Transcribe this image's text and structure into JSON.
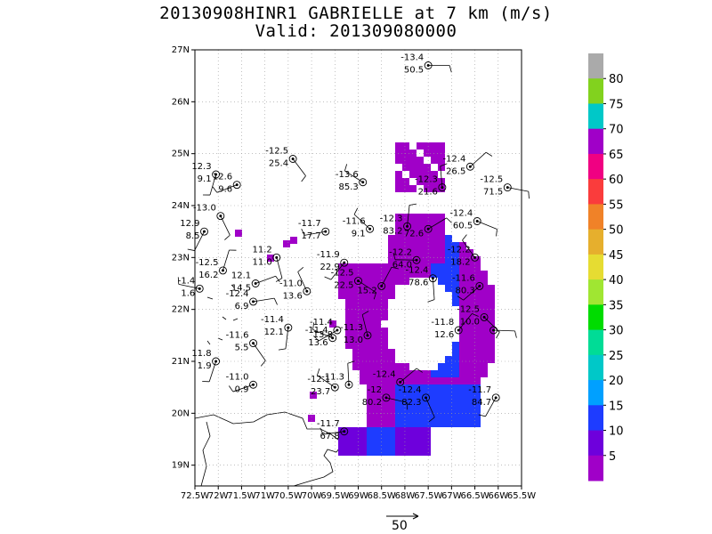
{
  "title": "20130908HINR1 GABRIELLE at 7 km (m/s)",
  "subtitle": "Valid: 201309080000",
  "map": {
    "lat_labels": [
      "27N",
      "26N",
      "25N",
      "24N",
      "23N",
      "22N",
      "21N",
      "20N",
      "19N"
    ],
    "lon_labels": [
      "72.5W",
      "72W",
      "71.5W",
      "71W",
      "70.5W",
      "70W",
      "69.5W",
      "69W",
      "68.5W",
      "68W",
      "67.5W",
      "67W",
      "66.5W",
      "66W",
      "65.5W"
    ],
    "lat_range": [
      18.6,
      27.0
    ],
    "lon_range": [
      -72.5,
      -65.5
    ],
    "grid": true
  },
  "colorbar": {
    "labels": [
      "5",
      "10",
      "15",
      "20",
      "25",
      "30",
      "35",
      "40",
      "45",
      "50",
      "55",
      "60",
      "65",
      "70",
      "75",
      "80"
    ],
    "colors": [
      "#a000c8",
      "#6e00dc",
      "#1e3cff",
      "#00a0ff",
      "#00c8c8",
      "#00dc96",
      "#00dc00",
      "#a0e632",
      "#e6dc32",
      "#e6af2d",
      "#f08228",
      "#fa3c3c",
      "#f00082",
      "#a000c8",
      "#00c8c8",
      "#82d21e",
      "#aaaaaa"
    ]
  },
  "stations": [
    {
      "lat": 26.7,
      "lon": -67.5,
      "t": "-13.4",
      "b": "50.5"
    },
    {
      "lat": 24.9,
      "lon": -70.4,
      "t": "-12.5",
      "b": "25.4"
    },
    {
      "lat": 24.6,
      "lon": -72.05,
      "t": "12.3",
      "b": "9.1"
    },
    {
      "lat": 24.4,
      "lon": -71.6,
      "t": "12.6",
      "b": "9.6"
    },
    {
      "lat": 24.45,
      "lon": -68.9,
      "t": "-13.6",
      "b": "85.3"
    },
    {
      "lat": 24.35,
      "lon": -67.2,
      "t": "-12.3",
      "b": "21.6"
    },
    {
      "lat": 24.75,
      "lon": -66.6,
      "t": "-12.4",
      "b": "26.5"
    },
    {
      "lat": 24.35,
      "lon": -65.8,
      "t": "-12.5",
      "b": "71.5"
    },
    {
      "lat": 23.8,
      "lon": -71.95,
      "t": "-13.0",
      "b": ""
    },
    {
      "lat": 23.5,
      "lon": -72.3,
      "t": "12.9",
      "b": "8.5"
    },
    {
      "lat": 23.5,
      "lon": -69.7,
      "t": "-11.7",
      "b": "17.7"
    },
    {
      "lat": 23.55,
      "lon": -68.75,
      "t": "-11.6",
      "b": "9.1"
    },
    {
      "lat": 23.6,
      "lon": -67.95,
      "t": "-12.3",
      "b": "83.2"
    },
    {
      "lat": 23.55,
      "lon": -67.5,
      "t": "",
      "b": "72.6"
    },
    {
      "lat": 23.7,
      "lon": -66.45,
      "t": "-12.4",
      "b": "60.5"
    },
    {
      "lat": 23.0,
      "lon": -70.75,
      "t": "11.2",
      "b": "11.0"
    },
    {
      "lat": 22.9,
      "lon": -69.3,
      "t": "-11.9",
      "b": "22.9"
    },
    {
      "lat": 22.95,
      "lon": -67.75,
      "t": "-12.2",
      "b": "64.0"
    },
    {
      "lat": 23.0,
      "lon": -66.5,
      "t": "-12.2",
      "b": "18.2"
    },
    {
      "lat": 22.75,
      "lon": -71.9,
      "t": "-12.5",
      "b": "16.2"
    },
    {
      "lat": 22.5,
      "lon": -71.2,
      "t": "12.1",
      "b": "14.5"
    },
    {
      "lat": 22.55,
      "lon": -69.0,
      "t": "-12.5",
      "b": "22.5"
    },
    {
      "lat": 22.6,
      "lon": -67.4,
      "t": "-12.4",
      "b": "78.6"
    },
    {
      "lat": 22.45,
      "lon": -66.4,
      "t": "-11.6",
      "b": "80.3"
    },
    {
      "lat": 22.4,
      "lon": -72.4,
      "t": "-1.4",
      "b": "1.6"
    },
    {
      "lat": 22.35,
      "lon": -70.1,
      "t": "-11.0",
      "b": "13.6"
    },
    {
      "lat": 22.45,
      "lon": -68.5,
      "t": "",
      "b": "15.2"
    },
    {
      "lat": 22.15,
      "lon": -71.25,
      "t": "-12.4",
      "b": "6.9"
    },
    {
      "lat": 21.85,
      "lon": -66.3,
      "t": "-12.5",
      "b": "10.0"
    },
    {
      "lat": 21.65,
      "lon": -70.5,
      "t": "-11.4",
      "b": "12.1"
    },
    {
      "lat": 21.6,
      "lon": -69.45,
      "t": "-11.4",
      "b": "13.8"
    },
    {
      "lat": 21.45,
      "lon": -69.55,
      "t": "-11.4",
      "b": "13.6"
    },
    {
      "lat": 21.5,
      "lon": -68.8,
      "t": "-11.3",
      "b": "13.0"
    },
    {
      "lat": 21.6,
      "lon": -66.85,
      "t": "-11.8",
      "b": "12.6"
    },
    {
      "lat": 21.6,
      "lon": -66.1,
      "t": "",
      "b": ""
    },
    {
      "lat": 21.35,
      "lon": -71.25,
      "t": "-11.6",
      "b": "5.5"
    },
    {
      "lat": 21.0,
      "lon": -72.05,
      "t": "11.8",
      "b": "1.9"
    },
    {
      "lat": 20.55,
      "lon": -71.25,
      "t": "-11.0",
      "b": "0.9"
    },
    {
      "lat": 20.5,
      "lon": -69.5,
      "t": "-12.1",
      "b": "23.7"
    },
    {
      "lat": 20.55,
      "lon": -69.2,
      "t": "-11.3",
      "b": ""
    },
    {
      "lat": 20.6,
      "lon": -68.1,
      "t": "-12.4",
      "b": ""
    },
    {
      "lat": 20.3,
      "lon": -68.4,
      "t": "-12",
      "b": "80.2"
    },
    {
      "lat": 20.3,
      "lon": -67.55,
      "t": "-12.4",
      "b": "82.3"
    },
    {
      "lat": 20.3,
      "lon": -66.05,
      "t": "-11.7",
      "b": "84.7"
    },
    {
      "lat": 19.65,
      "lon": -69.3,
      "t": "-11.7",
      "b": "67.8"
    }
  ],
  "reference_vector": {
    "value": "50"
  }
}
